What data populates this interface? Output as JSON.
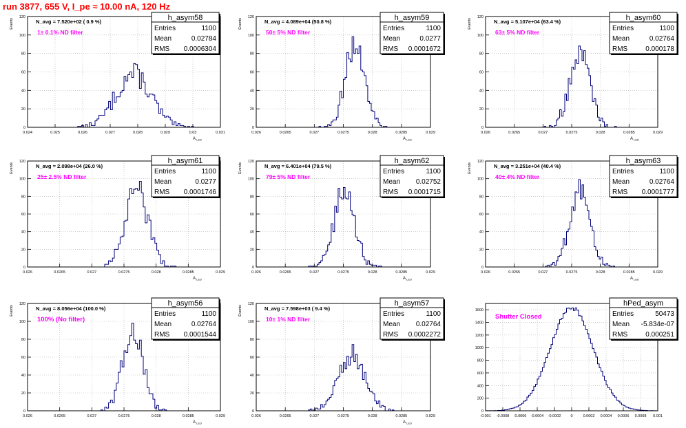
{
  "page": {
    "title": "run 3877,   655 V, I_pe ≈ 10.00 nA, 120 Hz"
  },
  "colors": {
    "histogram": "#00007a",
    "filter_label": "#ff00ff",
    "navg_label": "#000000",
    "title": "#ff0000",
    "grid": "#b0b0b0"
  },
  "chart_data": [
    {
      "type": "histogram",
      "name": "h_asym58",
      "ylabel": "Events",
      "xlabel": "A_LED",
      "navg": "N_avg = 7.520e+02 ( 0.9 %)",
      "filter": "1± 0.1% ND filter",
      "stats": {
        "entries": "1100",
        "mean": "0.02784",
        "rms": "0.0006304"
      },
      "xlim": [
        0.024,
        0.031
      ],
      "ylim": [
        0,
        120
      ],
      "xticks": [
        "0.024",
        "0.025",
        "0.026",
        "0.027",
        "0.028",
        "0.029",
        "0.03",
        "0.031"
      ],
      "yticks": [
        "0",
        "20",
        "40",
        "60",
        "80",
        "100",
        "120"
      ],
      "grid": true,
      "mean": 0.02784,
      "rms": 0.0006304,
      "peak": 58
    },
    {
      "type": "histogram",
      "name": "h_asym59",
      "ylabel": "Events",
      "xlabel": "A_LED",
      "navg": "N_avg = 4.089e+04 (50.8 %)",
      "filter": "50± 5% ND filter",
      "stats": {
        "entries": "1100",
        "mean": "0.0277",
        "rms": "0.0001672"
      },
      "xlim": [
        0.026,
        0.029
      ],
      "ylim": [
        0,
        120
      ],
      "xticks": [
        "0.026",
        "0.0265",
        "0.027",
        "0.0275",
        "0.028",
        "0.0285",
        "0.029"
      ],
      "yticks": [
        "0",
        "20",
        "40",
        "60",
        "80",
        "100",
        "120"
      ],
      "grid": true,
      "mean": 0.0277,
      "rms": 0.0001672,
      "peak": 90
    },
    {
      "type": "histogram",
      "name": "h_asym60",
      "ylabel": "Events",
      "xlabel": "A_LED",
      "navg": "N_avg = 5.107e+04 (63.4 %)",
      "filter": "63± 5% ND filter",
      "stats": {
        "entries": "1100",
        "mean": "0.02764",
        "rms": "0.000178"
      },
      "xlim": [
        0.026,
        0.029
      ],
      "ylim": [
        0,
        120
      ],
      "xticks": [
        "0.026",
        "0.0265",
        "0.027",
        "0.0275",
        "0.028",
        "0.0285",
        "0.029"
      ],
      "yticks": [
        "0",
        "20",
        "40",
        "60",
        "80",
        "100",
        "120"
      ],
      "grid": true,
      "mean": 0.02764,
      "rms": 0.000178,
      "peak": 80
    },
    {
      "type": "histogram",
      "name": "h_asym61",
      "ylabel": "Events",
      "xlabel": "A_LED",
      "navg": "N_avg = 2.098e+04 (26.0 %)",
      "filter": "25± 2.5% ND filter",
      "stats": {
        "entries": "1100",
        "mean": "0.0277",
        "rms": "0.0001746"
      },
      "xlim": [
        0.026,
        0.029
      ],
      "ylim": [
        0,
        120
      ],
      "xticks": [
        "0.026",
        "0.0265",
        "0.027",
        "0.0275",
        "0.028",
        "0.0285",
        "0.029"
      ],
      "yticks": [
        "0",
        "20",
        "40",
        "60",
        "80",
        "100",
        "120"
      ],
      "grid": true,
      "mean": 0.0277,
      "rms": 0.0001746,
      "peak": 88
    },
    {
      "type": "histogram",
      "name": "h_asym62",
      "ylabel": "Events",
      "xlabel": "A_LED",
      "navg": "N_avg = 6.401e+04 (79.5 %)",
      "filter": "79± 5% ND filter",
      "stats": {
        "entries": "1100",
        "mean": "0.02752",
        "rms": "0.0001715"
      },
      "xlim": [
        0.026,
        0.029
      ],
      "ylim": [
        0,
        120
      ],
      "xticks": [
        "0.026",
        "0.0265",
        "0.027",
        "0.0275",
        "0.028",
        "0.0285",
        "0.029"
      ],
      "yticks": [
        "0",
        "20",
        "40",
        "60",
        "80",
        "100",
        "120"
      ],
      "grid": true,
      "mean": 0.02752,
      "rms": 0.0001715,
      "peak": 88
    },
    {
      "type": "histogram",
      "name": "h_asym63",
      "ylabel": "Events",
      "xlabel": "A_LED",
      "navg": "N_avg = 3.251e+04 (40.4 %)",
      "filter": "40± 4% ND filter",
      "stats": {
        "entries": "1100",
        "mean": "0.02764",
        "rms": "0.0001777"
      },
      "xlim": [
        0.026,
        0.029
      ],
      "ylim": [
        0,
        120
      ],
      "xticks": [
        "0.026",
        "0.0265",
        "0.027",
        "0.0275",
        "0.028",
        "0.0285",
        "0.029"
      ],
      "yticks": [
        "0",
        "20",
        "40",
        "60",
        "80",
        "100",
        "120"
      ],
      "grid": true,
      "mean": 0.02764,
      "rms": 0.0001777,
      "peak": 85
    },
    {
      "type": "histogram",
      "name": "h_asym56",
      "ylabel": "Events",
      "xlabel": "A_LED",
      "navg": "N_avg = 8.056e+04 (100.0 %)",
      "filter": "100% (No filter)",
      "stats": {
        "entries": "1100",
        "mean": "0.02764",
        "rms": "0.0001544"
      },
      "xlim": [
        0.026,
        0.029
      ],
      "ylim": [
        0,
        120
      ],
      "xticks": [
        "0.026",
        "0.0265",
        "0.027",
        "0.0275",
        "0.028",
        "0.0285",
        "0.029"
      ],
      "yticks": [
        "0",
        "20",
        "40",
        "60",
        "80",
        "100",
        "120"
      ],
      "grid": true,
      "mean": 0.02764,
      "rms": 0.0001544,
      "peak": 92
    },
    {
      "type": "histogram",
      "name": "h_asym57",
      "ylabel": "Events",
      "xlabel": "A_LED",
      "navg": "N_avg = 7.598e+03 ( 9.4 %)",
      "filter": "10± 1% ND filter",
      "stats": {
        "entries": "1100",
        "mean": "0.02764",
        "rms": "0.0002272"
      },
      "xlim": [
        0.026,
        0.029
      ],
      "ylim": [
        0,
        120
      ],
      "xticks": [
        "0.026",
        "0.0265",
        "0.027",
        "0.0275",
        "0.028",
        "0.0285",
        "0.029"
      ],
      "yticks": [
        "0",
        "20",
        "40",
        "60",
        "80",
        "100",
        "120"
      ],
      "grid": true,
      "mean": 0.02764,
      "rms": 0.0002272,
      "peak": 62
    },
    {
      "type": "histogram",
      "name": "hPed_asym",
      "ylabel": "",
      "xlabel": "",
      "navg": "",
      "filter": "Shutter Closed",
      "stats": {
        "entries": "50473",
        "mean": "-5.834e-07",
        "rms": "0.000251"
      },
      "xlim": [
        -0.001,
        0.001
      ],
      "ylim": [
        0,
        1700
      ],
      "xticks": [
        "-0.001",
        "-0.0008",
        "-0.0006",
        "-0.0004",
        "-0.0002",
        "0",
        "0.0002",
        "0.0004",
        "0.0006",
        "0.0008",
        "0.001"
      ],
      "yticks": [
        "0",
        "200",
        "400",
        "600",
        "800",
        "1000",
        "1200",
        "1400",
        "1600"
      ],
      "grid": true,
      "mean": -5.834e-07,
      "rms": 0.000251,
      "peak": 1630
    }
  ]
}
